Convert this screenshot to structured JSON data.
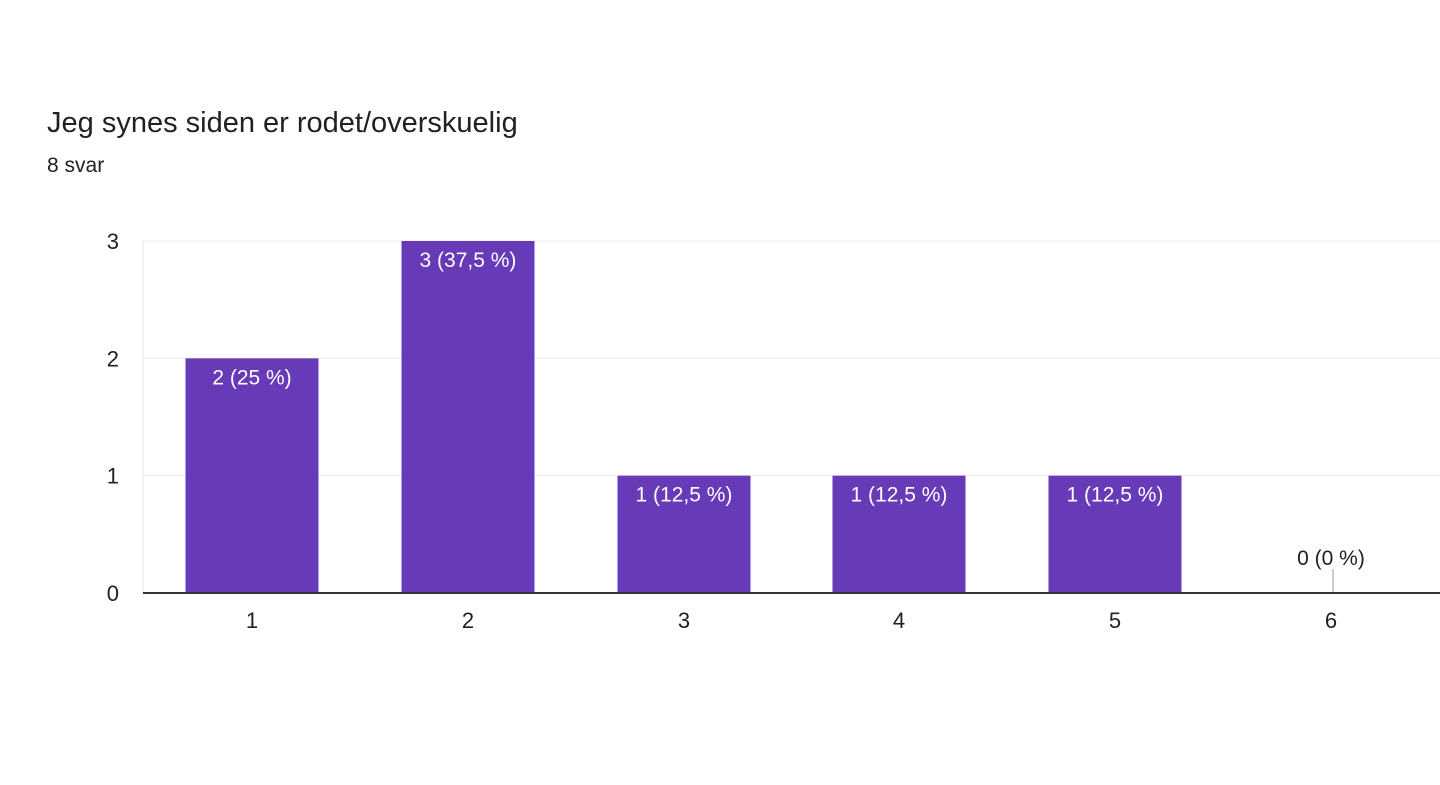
{
  "question": {
    "title": "Jeg synes siden er rodet/overskuelig",
    "response_count": "8 svar"
  },
  "colors": {
    "bar": "#673ab7",
    "grid": "#e8e8e8",
    "axis": "#333333",
    "label_on_bar": "#ffffff",
    "label_outside": "#202124",
    "tick_text": "#202124"
  },
  "chart_data": {
    "type": "bar",
    "categories": [
      "1",
      "2",
      "3",
      "4",
      "5",
      "6"
    ],
    "values": [
      2,
      3,
      1,
      1,
      1,
      0
    ],
    "data_labels": [
      "2 (25 %)",
      "3 (37,5 %)",
      "1 (12,5 %)",
      "1 (12,5 %)",
      "1 (12,5 %)",
      "0 (0 %)"
    ],
    "y_ticks": [
      "0",
      "1",
      "2",
      "3"
    ],
    "ylim": [
      0,
      3
    ],
    "grid": true,
    "legend": "none",
    "title": "Jeg synes siden er rodet/overskuelig",
    "xlabel": "",
    "ylabel": ""
  }
}
